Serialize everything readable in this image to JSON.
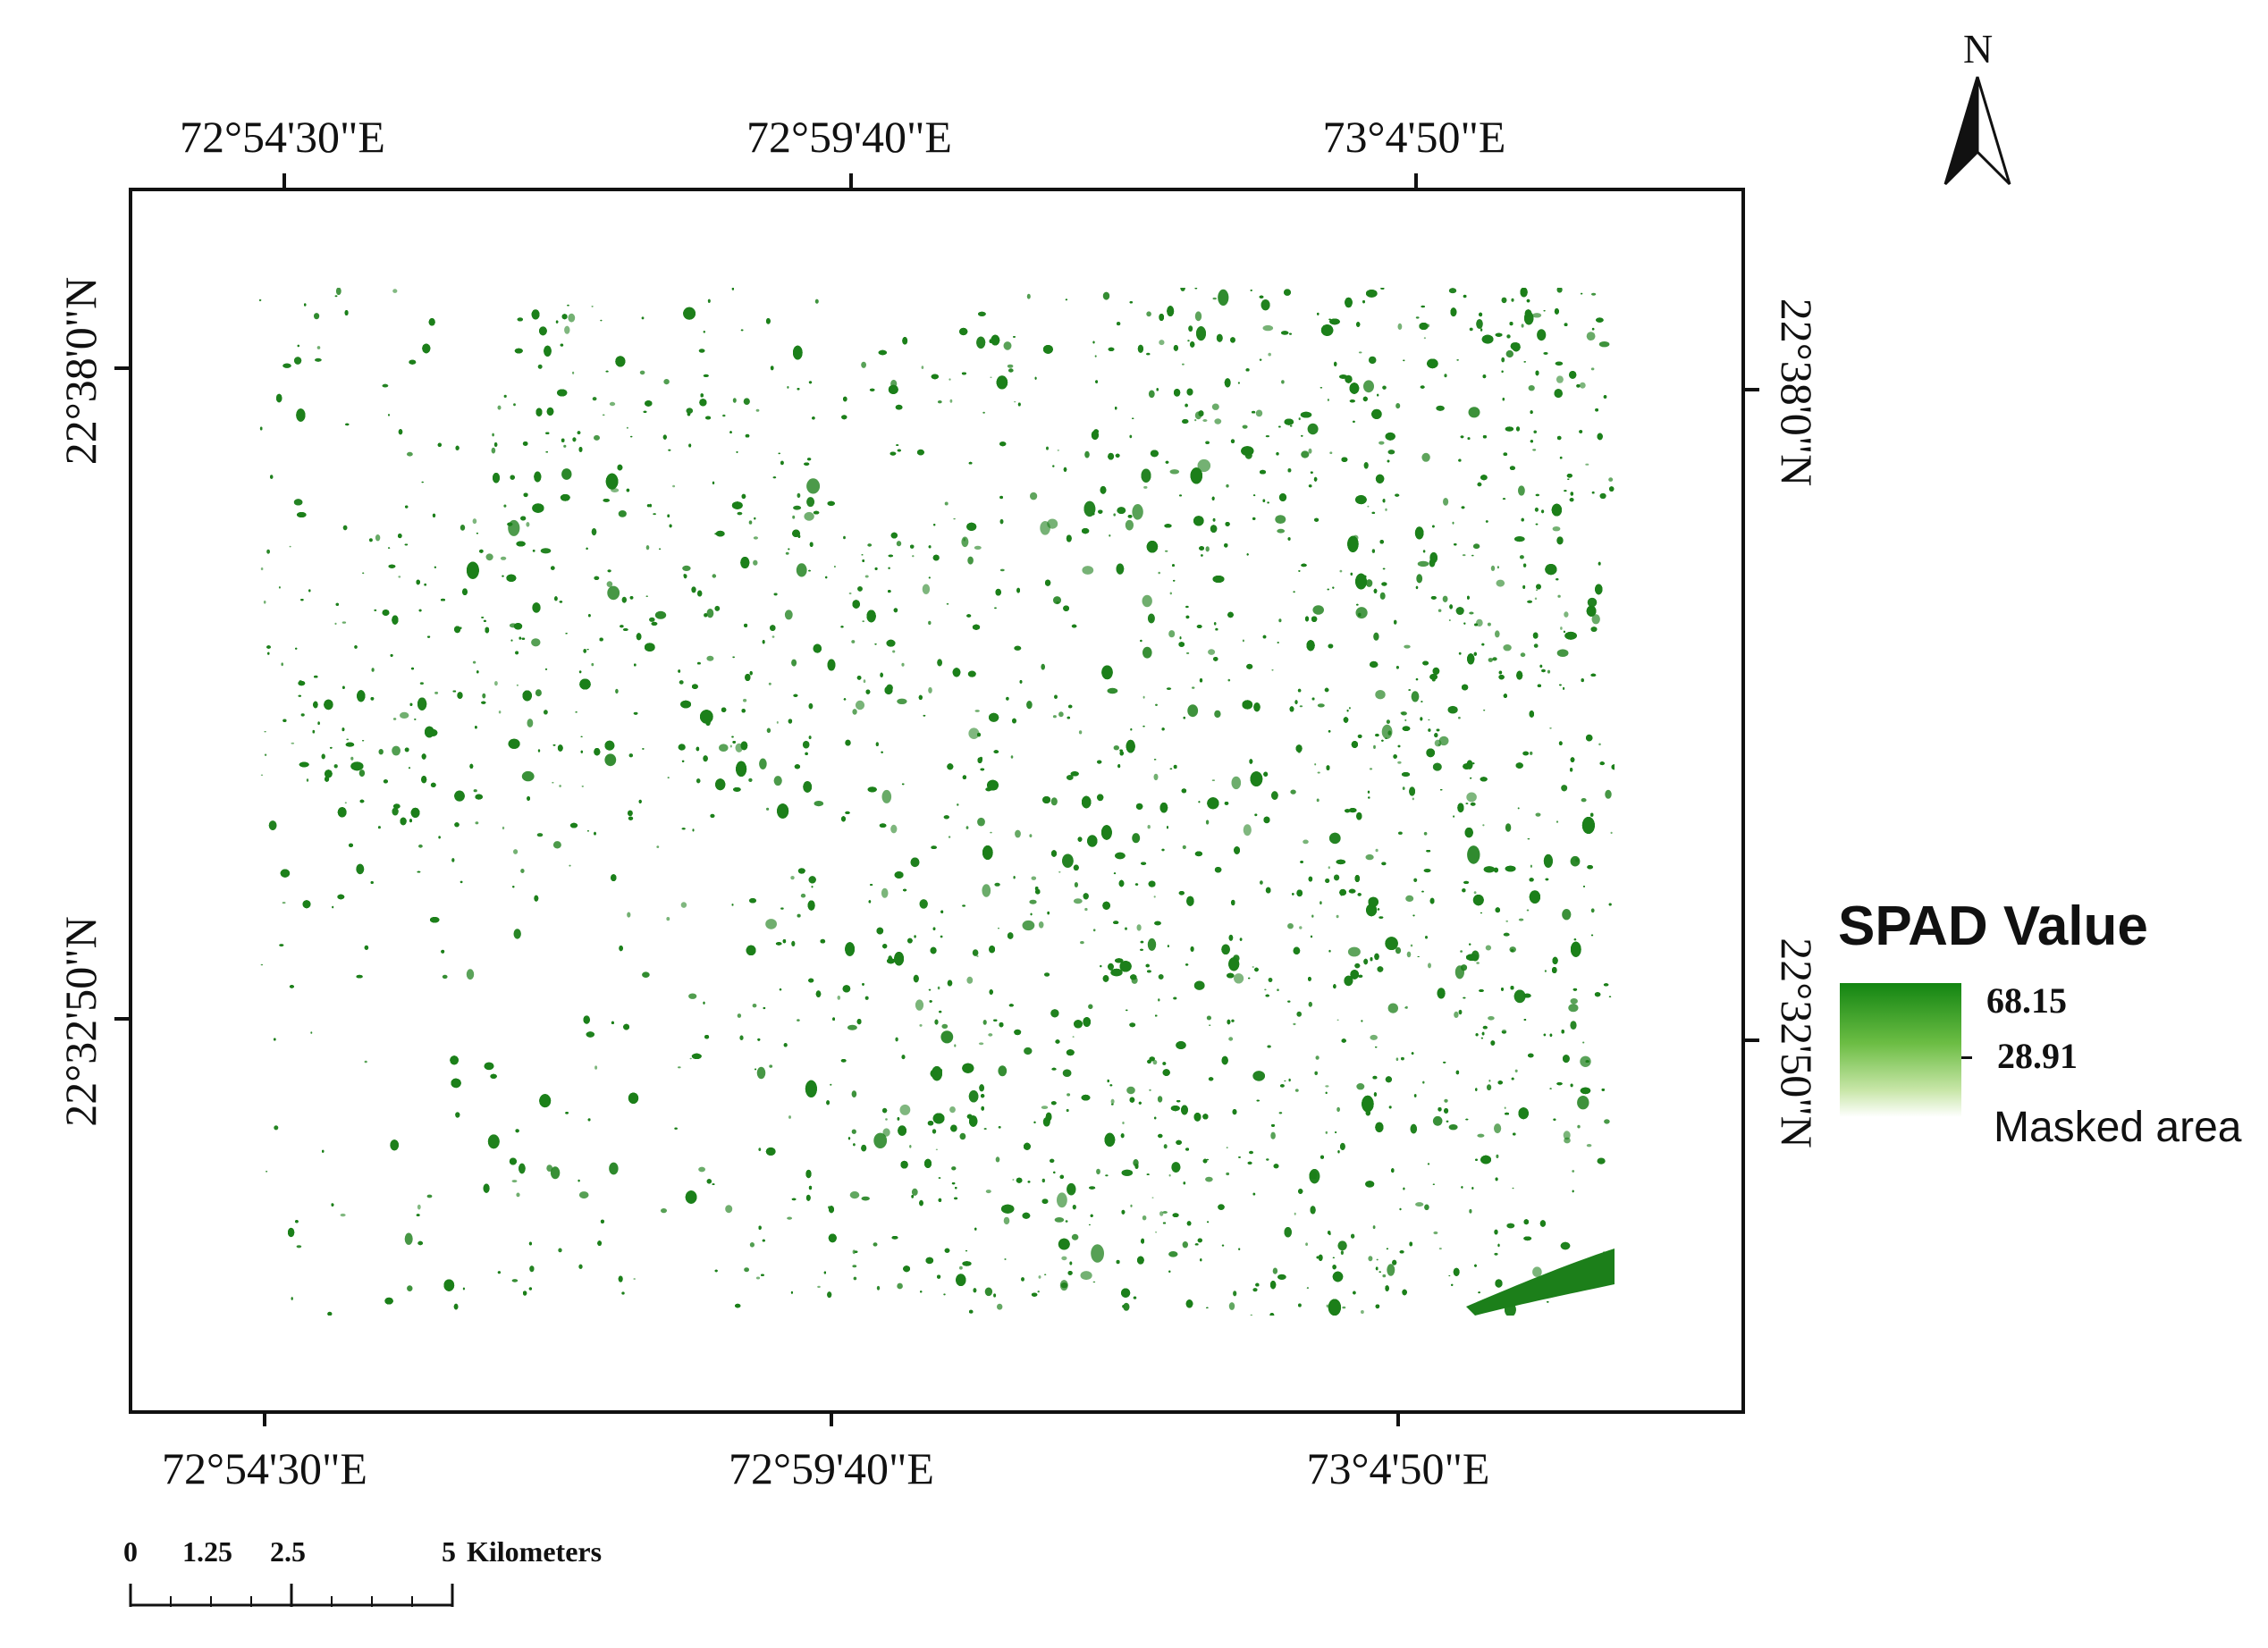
{
  "map": {
    "top_longitudes": [
      "72°54'30\"E",
      "72°59'40\"E",
      "73°4'50\"E"
    ],
    "bottom_longitudes": [
      "72°54'30\"E",
      "72°59'40\"E",
      "73°4'50\"E"
    ],
    "left_latitudes": [
      "22°38'0\"N",
      "22°32'50\"N"
    ],
    "right_latitudes": [
      "22°38'0\"N",
      "22°32'50\"N"
    ],
    "fill_color": "#1c7f1a"
  },
  "north_arrow": {
    "label": "N"
  },
  "legend": {
    "title": "SPAD Value",
    "max_label": "68.15",
    "mid_label": "28.91",
    "masked_label": "Masked area",
    "ramp_colors": [
      "#138512",
      "#6cbd44",
      "#c8e6a8",
      "#ffffff"
    ]
  },
  "scale_bar": {
    "labels": [
      "0",
      "1.25",
      "2.5",
      "5"
    ],
    "unit": "Kilometers"
  }
}
